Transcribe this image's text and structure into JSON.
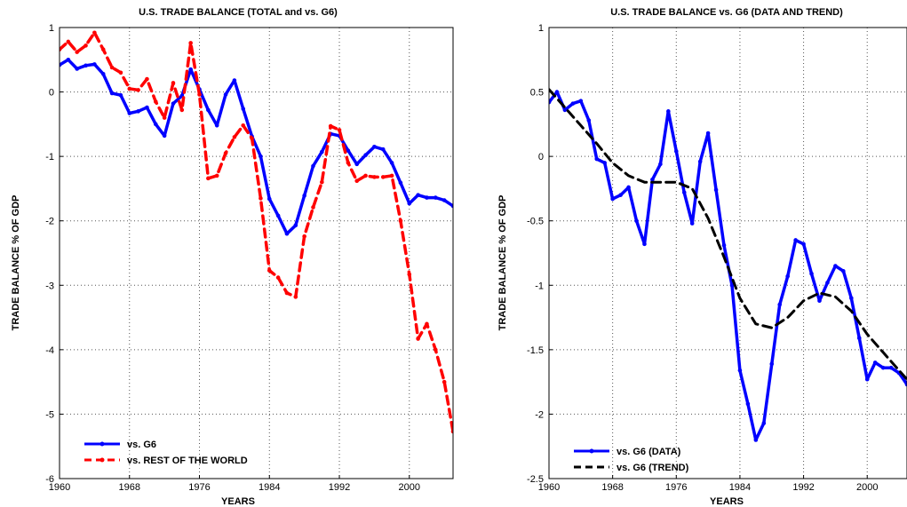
{
  "chart_data": [
    {
      "type": "line",
      "title": "U.S. TRADE BALANCE (TOTAL and vs. G6)",
      "xlabel": "YEARS",
      "ylabel": "TRADE BALANCE % OF GDP",
      "xlim": [
        1960,
        2005
      ],
      "ylim": [
        -6,
        1
      ],
      "xticks": [
        "1960",
        "1968",
        "1976",
        "1984",
        "1992",
        "2000"
      ],
      "yticks": [
        "1",
        "0",
        "-1",
        "-2",
        "-3",
        "-4",
        "-5",
        "-6"
      ],
      "grid": true,
      "legend_position": "bottom-left",
      "series": [
        {
          "name": "vs. G6",
          "color": "#0000ff",
          "line_style": "solid",
          "marker": "dot",
          "x": [
            1960,
            1961,
            1962,
            1963,
            1964,
            1965,
            1966,
            1967,
            1968,
            1969,
            1970,
            1971,
            1972,
            1973,
            1974,
            1975,
            1976,
            1977,
            1978,
            1979,
            1980,
            1981,
            1982,
            1983,
            1984,
            1985,
            1986,
            1987,
            1988,
            1989,
            1990,
            1991,
            1992,
            1993,
            1994,
            1995,
            1996,
            1997,
            1998,
            1999,
            2000,
            2001,
            2002,
            2003,
            2004,
            2005
          ],
          "y": [
            0.42,
            0.5,
            0.36,
            0.41,
            0.43,
            0.28,
            -0.02,
            -0.05,
            -0.33,
            -0.3,
            -0.24,
            -0.5,
            -0.68,
            -0.18,
            -0.06,
            0.35,
            0.04,
            -0.28,
            -0.52,
            -0.04,
            0.18,
            -0.26,
            -0.69,
            -1.0,
            -1.66,
            -1.92,
            -2.2,
            -2.07,
            -1.61,
            -1.15,
            -0.93,
            -0.65,
            -0.68,
            -0.91,
            -1.12,
            -0.98,
            -0.85,
            -0.89,
            -1.1,
            -1.41,
            -1.73,
            -1.6,
            -1.64,
            -1.64,
            -1.68,
            -1.77
          ]
        },
        {
          "name": "vs. REST OF THE WORLD",
          "color": "#ff0000",
          "line_style": "dashed",
          "marker": "dot",
          "x": [
            1960,
            1961,
            1962,
            1963,
            1964,
            1965,
            1966,
            1967,
            1968,
            1969,
            1970,
            1971,
            1972,
            1973,
            1974,
            1975,
            1976,
            1977,
            1978,
            1979,
            1980,
            1981,
            1982,
            1983,
            1984,
            1985,
            1986,
            1987,
            1988,
            1989,
            1990,
            1991,
            1992,
            1993,
            1994,
            1995,
            1996,
            1997,
            1998,
            1999,
            2000,
            2001,
            2002,
            2003,
            2004,
            2005
          ],
          "y": [
            0.66,
            0.78,
            0.62,
            0.72,
            0.92,
            0.66,
            0.38,
            0.3,
            0.05,
            0.03,
            0.2,
            -0.15,
            -0.4,
            0.14,
            -0.28,
            0.76,
            -0.04,
            -1.34,
            -1.3,
            -0.95,
            -0.7,
            -0.52,
            -0.72,
            -1.65,
            -2.77,
            -2.88,
            -3.12,
            -3.18,
            -2.24,
            -1.79,
            -1.4,
            -0.53,
            -0.59,
            -1.1,
            -1.38,
            -1.3,
            -1.32,
            -1.32,
            -1.3,
            -2.0,
            -2.83,
            -3.83,
            -3.6,
            -4.0,
            -4.5,
            -5.27
          ]
        }
      ]
    },
    {
      "type": "line",
      "title": "U.S. TRADE BALANCE vs. G6 (DATA AND TREND)",
      "xlabel": "YEARS",
      "ylabel": "TRADE BALANCE % OF GDP",
      "xlim": [
        1960,
        2005
      ],
      "ylim": [
        -2.5,
        1
      ],
      "xticks": [
        "1960",
        "1968",
        "1976",
        "1984",
        "1992",
        "2000"
      ],
      "yticks": [
        "1",
        "0.5",
        "0",
        "-0.5",
        "-1",
        "-1.5",
        "-2",
        "-2.5"
      ],
      "grid": true,
      "legend_position": "bottom-left",
      "series": [
        {
          "name": "vs. G6 (DATA)",
          "color": "#0000ff",
          "line_style": "solid",
          "marker": "dot",
          "x": [
            1960,
            1961,
            1962,
            1963,
            1964,
            1965,
            1966,
            1967,
            1968,
            1969,
            1970,
            1971,
            1972,
            1973,
            1974,
            1975,
            1976,
            1977,
            1978,
            1979,
            1980,
            1981,
            1982,
            1983,
            1984,
            1985,
            1986,
            1987,
            1988,
            1989,
            1990,
            1991,
            1992,
            1993,
            1994,
            1995,
            1996,
            1997,
            1998,
            1999,
            2000,
            2001,
            2002,
            2003,
            2004,
            2005
          ],
          "y": [
            0.42,
            0.5,
            0.36,
            0.41,
            0.43,
            0.28,
            -0.02,
            -0.05,
            -0.33,
            -0.3,
            -0.24,
            -0.5,
            -0.68,
            -0.18,
            -0.06,
            0.35,
            0.04,
            -0.28,
            -0.52,
            -0.04,
            0.18,
            -0.26,
            -0.69,
            -1.0,
            -1.66,
            -1.92,
            -2.2,
            -2.07,
            -1.61,
            -1.15,
            -0.93,
            -0.65,
            -0.68,
            -0.91,
            -1.12,
            -0.98,
            -0.85,
            -0.89,
            -1.1,
            -1.41,
            -1.73,
            -1.6,
            -1.64,
            -1.64,
            -1.68,
            -1.77
          ]
        },
        {
          "name": "vs. G6 (TREND)",
          "color": "#000000",
          "line_style": "dashed",
          "marker": "none",
          "x": [
            1960,
            1962,
            1964,
            1966,
            1968,
            1970,
            1972,
            1974,
            1976,
            1978,
            1980,
            1982,
            1984,
            1986,
            1988,
            1990,
            1992,
            1994,
            1996,
            1998,
            2000,
            2002,
            2004,
            2005
          ],
          "y": [
            0.52,
            0.38,
            0.24,
            0.1,
            -0.05,
            -0.15,
            -0.2,
            -0.2,
            -0.2,
            -0.25,
            -0.48,
            -0.78,
            -1.1,
            -1.3,
            -1.33,
            -1.25,
            -1.12,
            -1.06,
            -1.09,
            -1.2,
            -1.38,
            -1.52,
            -1.66,
            -1.73
          ]
        }
      ]
    }
  ]
}
